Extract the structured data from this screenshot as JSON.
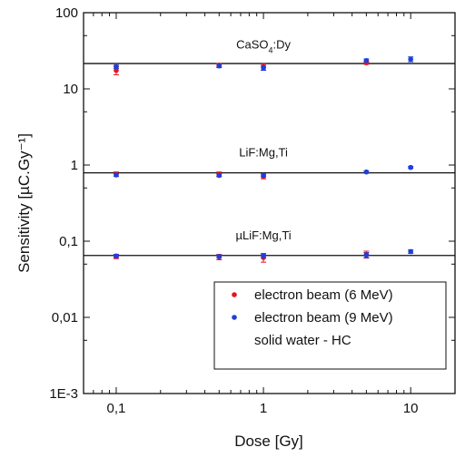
{
  "chart_data": {
    "type": "scatter",
    "xlabel": "Dose [Gy]",
    "ylabel": "Sensitivity [µC.Gy⁻¹]",
    "x_scale": "log",
    "y_scale": "log",
    "xlim": [
      0.06,
      20
    ],
    "ylim": [
      0.001,
      100
    ],
    "x_ticks": [
      {
        "value": 0.1,
        "label": "0,1"
      },
      {
        "value": 1,
        "label": "1"
      },
      {
        "value": 10,
        "label": "10"
      }
    ],
    "y_ticks": [
      {
        "value": 0.001,
        "label": "1E-3"
      },
      {
        "value": 0.01,
        "label": "0,01"
      },
      {
        "value": 0.1,
        "label": "0,1"
      },
      {
        "value": 1,
        "label": "1"
      },
      {
        "value": 10,
        "label": "10"
      },
      {
        "value": 100,
        "label": "100"
      }
    ],
    "grid": false,
    "legend_position": "bottom-right",
    "legend": [
      {
        "label": "electron beam (6 MeV)",
        "marker": "dot",
        "color": "#e8141c"
      },
      {
        "label": "electron beam (9 MeV)",
        "marker": "dot",
        "color": "#1f3fd8"
      },
      {
        "label": "solid water - HC",
        "marker": "none",
        "color": "#111111"
      }
    ],
    "annotations": [
      {
        "text": "CaSO4:Dy",
        "x": 1,
        "y": 34
      },
      {
        "text": "LiF:Mg,Ti",
        "x": 1,
        "y": 1.3
      },
      {
        "text": "µLiF:Mg,Ti",
        "x": 1,
        "y": 0.105
      }
    ],
    "reference_lines": [
      {
        "group": "CaSO4:Dy",
        "y": 21.5
      },
      {
        "group": "LiF:Mg,Ti",
        "y": 0.79
      },
      {
        "group": "µLiF:Mg,Ti",
        "y": 0.065
      }
    ],
    "series": [
      {
        "name": "electron beam (6 MeV)",
        "color": "#e8141c",
        "points": [
          {
            "group": "CaSO4:Dy",
            "x": 0.1,
            "y": 17.5,
            "err": 2.2
          },
          {
            "group": "CaSO4:Dy",
            "x": 0.5,
            "y": 20.5,
            "err": 1.0
          },
          {
            "group": "CaSO4:Dy",
            "x": 1,
            "y": 19.5,
            "err": 1.8
          },
          {
            "group": "CaSO4:Dy",
            "x": 5,
            "y": 22.0,
            "err": 1.0
          },
          {
            "group": "LiF:Mg,Ti",
            "x": 0.1,
            "y": 0.76,
            "err": 0.05
          },
          {
            "group": "LiF:Mg,Ti",
            "x": 0.5,
            "y": 0.76,
            "err": 0.05
          },
          {
            "group": "LiF:Mg,Ti",
            "x": 1,
            "y": 0.71,
            "err": 0.05
          },
          {
            "group": "µLiF:Mg,Ti",
            "x": 0.1,
            "y": 0.063,
            "err": 0.004
          },
          {
            "group": "µLiF:Mg,Ti",
            "x": 0.5,
            "y": 0.062,
            "err": 0.005
          },
          {
            "group": "µLiF:Mg,Ti",
            "x": 1,
            "y": 0.061,
            "err": 0.008
          },
          {
            "group": "µLiF:Mg,Ti",
            "x": 5,
            "y": 0.067,
            "err": 0.007
          }
        ]
      },
      {
        "name": "electron beam (9 MeV)",
        "color": "#1f3fd8",
        "points": [
          {
            "group": "CaSO4:Dy",
            "x": 0.1,
            "y": 19.5,
            "err": 1.0
          },
          {
            "group": "CaSO4:Dy",
            "x": 0.5,
            "y": 20.0,
            "err": 1.0
          },
          {
            "group": "CaSO4:Dy",
            "x": 1,
            "y": 19.0,
            "err": 1.5
          },
          {
            "group": "CaSO4:Dy",
            "x": 5,
            "y": 23.5,
            "err": 1.2
          },
          {
            "group": "CaSO4:Dy",
            "x": 10,
            "y": 24.5,
            "err": 1.8
          },
          {
            "group": "LiF:Mg,Ti",
            "x": 0.1,
            "y": 0.74,
            "err": 0.03
          },
          {
            "group": "LiF:Mg,Ti",
            "x": 0.5,
            "y": 0.73,
            "err": 0.03
          },
          {
            "group": "LiF:Mg,Ti",
            "x": 1,
            "y": 0.73,
            "err": 0.03
          },
          {
            "group": "LiF:Mg,Ti",
            "x": 5,
            "y": 0.81,
            "err": 0.03
          },
          {
            "group": "LiF:Mg,Ti",
            "x": 10,
            "y": 0.93,
            "err": 0.03
          },
          {
            "group": "µLiF:Mg,Ti",
            "x": 0.1,
            "y": 0.064,
            "err": 0.003
          },
          {
            "group": "µLiF:Mg,Ti",
            "x": 0.5,
            "y": 0.063,
            "err": 0.003
          },
          {
            "group": "µLiF:Mg,Ti",
            "x": 1,
            "y": 0.064,
            "err": 0.004
          },
          {
            "group": "µLiF:Mg,Ti",
            "x": 5,
            "y": 0.066,
            "err": 0.005
          },
          {
            "group": "µLiF:Mg,Ti",
            "x": 10,
            "y": 0.073,
            "err": 0.004
          }
        ]
      }
    ]
  }
}
